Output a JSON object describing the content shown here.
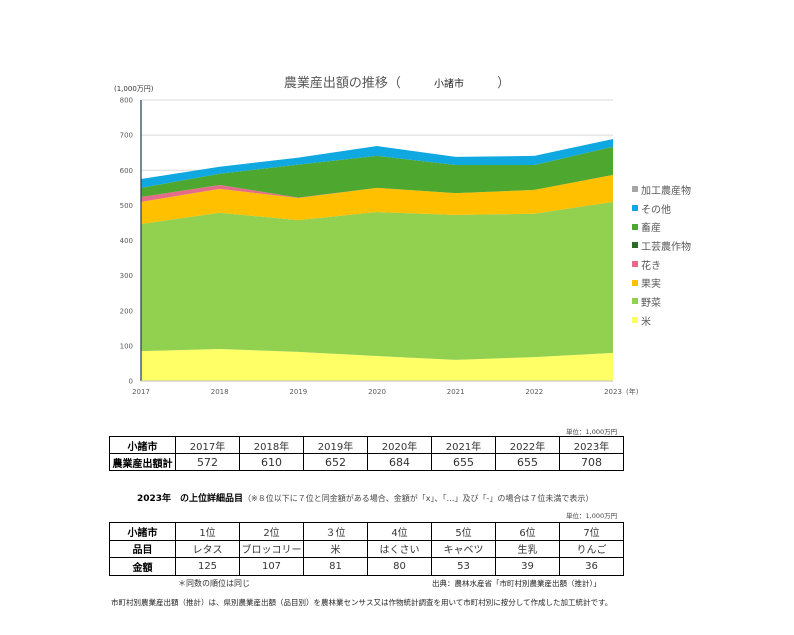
{
  "title": {
    "main": "農業産出額の推移（",
    "municipality": "小諸市",
    "close": "）"
  },
  "y_unit": "(1,000万円)",
  "x_unit": "(年)",
  "chart_data": {
    "type": "area",
    "stacked": true,
    "title": "農業産出額の推移（ 小諸市 ）",
    "xlabel": "(年)",
    "ylabel": "(1,000万円)",
    "ylim": [
      0,
      800
    ],
    "yticks": [
      0,
      100,
      200,
      300,
      400,
      500,
      600,
      700,
      800
    ],
    "grid": true,
    "legend_position": "right",
    "categories": [
      "2017",
      "2018",
      "2019",
      "2020",
      "2021",
      "2022",
      "2023"
    ],
    "series": [
      {
        "name": "米",
        "color": "#FFFF66",
        "values": [
          85,
          91,
          83,
          71,
          60,
          68,
          80
        ]
      },
      {
        "name": "野菜",
        "color": "#92D050",
        "values": [
          362,
          388,
          375,
          410,
          413,
          408,
          430
        ]
      },
      {
        "name": "果実",
        "color": "#FFC000",
        "values": [
          63,
          68,
          63,
          69,
          62,
          68,
          77
        ]
      },
      {
        "name": "花き",
        "color": "#E46C8A",
        "values": [
          14,
          11,
          1,
          0,
          0,
          0,
          0
        ]
      },
      {
        "name": "工芸農作物",
        "color": "#2E6B2A",
        "values": [
          0,
          0,
          0,
          0,
          0,
          0,
          0
        ]
      },
      {
        "name": "畜産",
        "color": "#4EA72E",
        "values": [
          26,
          32,
          94,
          91,
          80,
          71,
          80
        ]
      },
      {
        "name": "その他",
        "color": "#0FA8E0",
        "values": [
          25,
          20,
          20,
          28,
          23,
          26,
          22
        ]
      },
      {
        "name": "加工農産物",
        "color": "#A6A6A6",
        "values": [
          0,
          0,
          0,
          0,
          0,
          0,
          0
        ]
      }
    ]
  },
  "legend": [
    {
      "label": "加工農産物",
      "color": "#A6A6A6"
    },
    {
      "label": "その他",
      "color": "#0FA8E0"
    },
    {
      "label": "畜産",
      "color": "#4EA72E"
    },
    {
      "label": "工芸農作物",
      "color": "#2E6B2A"
    },
    {
      "label": "花き",
      "color": "#E46C8A"
    },
    {
      "label": "果実",
      "color": "#FFC000"
    },
    {
      "label": "野菜",
      "color": "#92D050"
    },
    {
      "label": "米",
      "color": "#FFFF66"
    }
  ],
  "table1": {
    "unit": "単位：1,000万円",
    "header": [
      "小諸市",
      "2017年",
      "2018年",
      "2019年",
      "2020年",
      "2021年",
      "2022年",
      "2023年"
    ],
    "row": [
      "農業産出額計",
      "572",
      "610",
      "652",
      "684",
      "655",
      "655",
      "708"
    ]
  },
  "table2": {
    "title": "2023年　の上位詳細品目",
    "note": "（※８位以下に７位と同金額がある場合、金額が「x」、「…」及び「-」の場合は７位未満で表示）",
    "unit": "単位：1,000万円",
    "rank_row": [
      "小諸市",
      "1位",
      "2位",
      "３位",
      "4位",
      "5位",
      "6位",
      "7位"
    ],
    "item_row": [
      "品目",
      "レタス",
      "ブロッコリー",
      "米",
      "はくさい",
      "キャベツ",
      "生乳",
      "りんご"
    ],
    "amount_row": [
      "金額",
      "125",
      "107",
      "81",
      "80",
      "53",
      "39",
      "36"
    ]
  },
  "same_rank_note": "＊同数の順位は同じ",
  "source": "出典：農林水産省「市町村別農業産出額（推計）」",
  "footnote": "市町村別農業産出額（推計）は、県別農業産出額（品目別）を農林業センサス又は作物統計調査を用いて市町村別に按分して作成した加工統計です。"
}
